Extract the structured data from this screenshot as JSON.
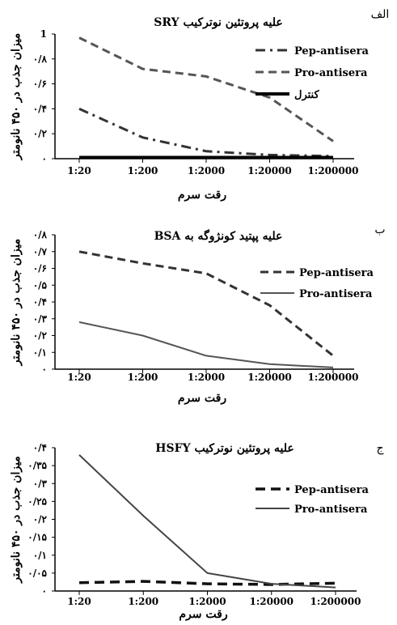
{
  "chart_data": [
    {
      "type": "line",
      "panel_label": "الف",
      "title": "علیه پروتئین نوترکیب SRY",
      "ylabel": "میزان جذب در ۴۵۰ نانومتر",
      "xlabel": "رقت سرم",
      "categories": [
        "1:20",
        "1:200",
        "1:2000",
        "1:20000",
        "1:200000"
      ],
      "yticks": [
        "1",
        "۰/۸",
        "۰/۶",
        "۰/۴",
        "۰/۲",
        "۰"
      ],
      "ylim": [
        0,
        1
      ],
      "series": [
        {
          "name": "Pep-antisera",
          "style": "dashdot",
          "color": "#333333",
          "values": [
            0.4,
            0.17,
            0.06,
            0.03,
            0.02
          ]
        },
        {
          "name": "Pro-antisera",
          "style": "dashed",
          "color": "#555555",
          "values": [
            0.97,
            0.72,
            0.66,
            0.49,
            0.14
          ]
        },
        {
          "name": "کنترل",
          "style": "solid-thick",
          "color": "#000000",
          "values": [
            0.01,
            0.01,
            0.01,
            0.01,
            0.01
          ]
        }
      ]
    },
    {
      "type": "line",
      "panel_label": "ب",
      "title": "علیه پپتید کونژوگه به BSA",
      "ylabel": "میزان جذب در ۴۵۰ نانومتر",
      "xlabel": "رقت سرم",
      "categories": [
        "1:20",
        "1:200",
        "1:2000",
        "1:20000",
        "1:200000"
      ],
      "yticks": [
        "۰/۸",
        "۰/۷",
        "۰/۶",
        "۰/۵",
        "۰/۴",
        "۰/۳",
        "۰/۲",
        "۰/۱",
        "۰"
      ],
      "ylim": [
        0,
        0.8
      ],
      "series": [
        {
          "name": "Pep-antisera",
          "style": "dashed",
          "color": "#333333",
          "values": [
            0.7,
            0.63,
            0.57,
            0.38,
            0.08
          ]
        },
        {
          "name": "Pro-antisera",
          "style": "solid",
          "color": "#555555",
          "values": [
            0.28,
            0.2,
            0.08,
            0.03,
            0.01
          ]
        }
      ]
    },
    {
      "type": "line",
      "panel_label": "ج",
      "title": "علیه پروتئین نوترکیب HSFY",
      "ylabel": "میزان جذب در ۴۵۰ نانومتر",
      "xlabel": "رقت سرم",
      "categories": [
        "1:20",
        "1:200",
        "1:2000",
        "1:20000",
        "1:200000"
      ],
      "yticks": [
        "۰/۴",
        "۰/۳۵",
        "۰/۳",
        "۰/۲۵",
        "۰/۲",
        "۰/۱۵",
        "۰/۱",
        "۰/۰۵",
        "۰"
      ],
      "ylim": [
        0,
        0.4
      ],
      "series": [
        {
          "name": "Pep-antisera",
          "style": "dashed-thick",
          "color": "#111111",
          "values": [
            0.023,
            0.027,
            0.02,
            0.018,
            0.022
          ]
        },
        {
          "name": "Pro-antisera",
          "style": "solid",
          "color": "#444444",
          "values": [
            0.38,
            0.21,
            0.05,
            0.02,
            0.01
          ]
        }
      ]
    }
  ]
}
